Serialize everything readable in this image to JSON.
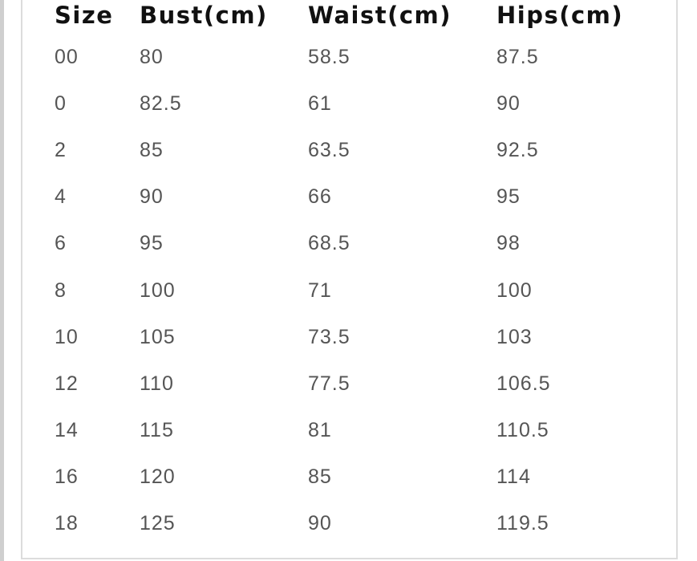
{
  "table": {
    "headers": [
      "Size",
      "Bust(cm)",
      "Waist(cm)",
      "Hips(cm)"
    ],
    "rows": [
      [
        "00",
        "80",
        "58.5",
        "87.5"
      ],
      [
        "0",
        "82.5",
        "61",
        "90"
      ],
      [
        "2",
        "85",
        "63.5",
        "92.5"
      ],
      [
        "4",
        "90",
        "66",
        "95"
      ],
      [
        "6",
        "95",
        "68.5",
        "98"
      ],
      [
        "8",
        "100",
        "71",
        "100"
      ],
      [
        "10",
        "105",
        "73.5",
        "103"
      ],
      [
        "12",
        "110",
        "77.5",
        "106.5"
      ],
      [
        "14",
        "115",
        "81",
        "110.5"
      ],
      [
        "16",
        "120",
        "85",
        "114"
      ],
      [
        "18",
        "125",
        "90",
        "119.5"
      ]
    ]
  }
}
